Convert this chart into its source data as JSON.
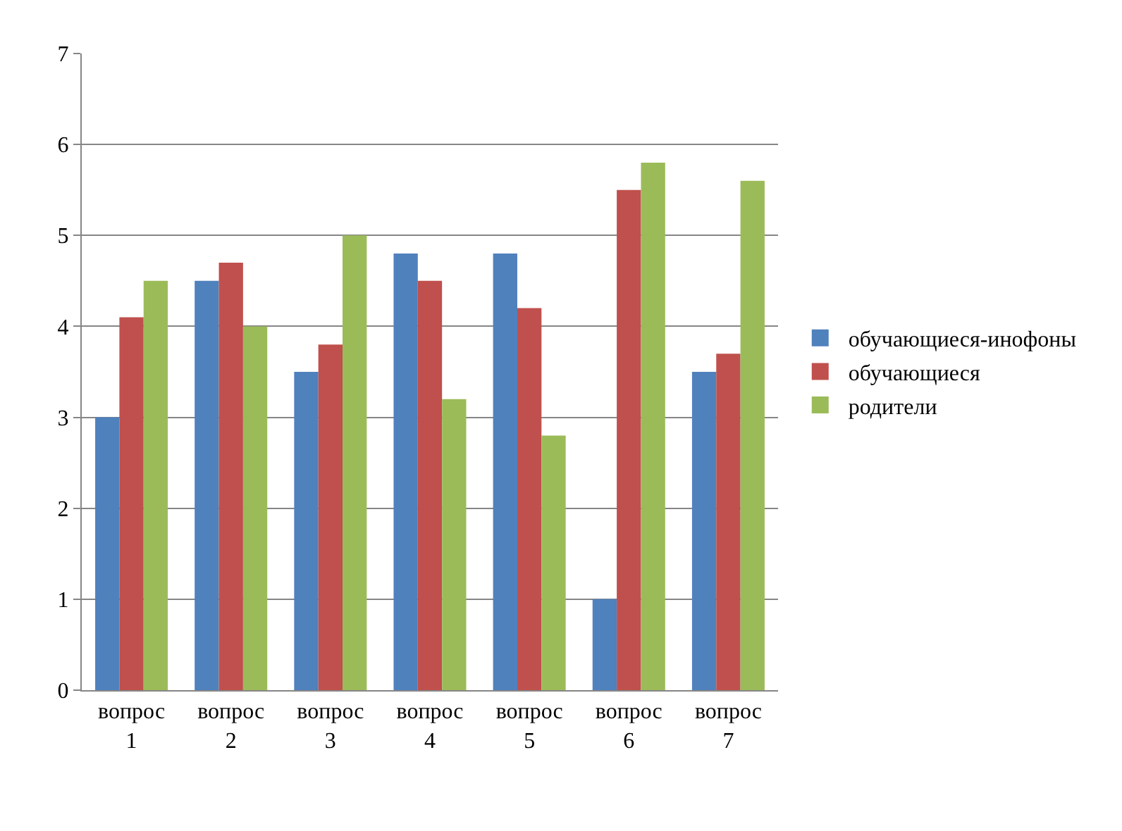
{
  "chart_data": {
    "type": "bar",
    "categories": [
      "вопрос 1",
      "вопрос 2",
      "вопрос 3",
      "вопрос 4",
      "вопрос 5",
      "вопрос 6",
      "вопрос 7"
    ],
    "series": [
      {
        "name": "обучающиеся-инофоны",
        "color": "#4f81bd",
        "values": [
          3.0,
          4.5,
          3.5,
          4.8,
          4.8,
          1.0,
          3.5
        ]
      },
      {
        "name": "обучающиеся",
        "color": "#c0504d",
        "values": [
          4.1,
          4.7,
          3.8,
          4.5,
          4.2,
          5.5,
          3.7
        ]
      },
      {
        "name": "родители",
        "color": "#9bbb59",
        "values": [
          4.5,
          4.0,
          5.0,
          3.2,
          2.8,
          5.8,
          5.6
        ]
      }
    ],
    "ylim": [
      0,
      7
    ],
    "yticks": [
      0,
      1,
      2,
      3,
      4,
      5,
      6,
      7
    ],
    "grid": "y",
    "legend": "right"
  }
}
